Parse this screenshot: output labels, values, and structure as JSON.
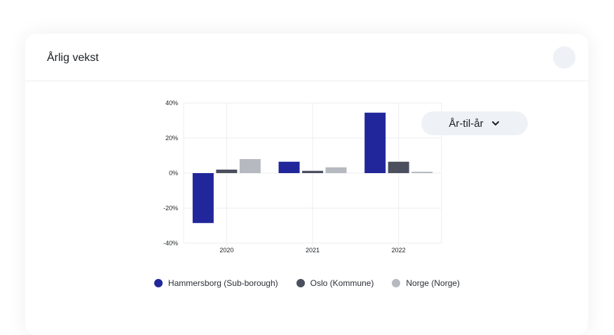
{
  "card": {
    "title": "Årlig vekst"
  },
  "dropdown": {
    "selected": "År-til-år",
    "icon": "chevron-down-icon"
  },
  "colors": {
    "hammersborg": "#21279a",
    "oslo": "#4b4f5e",
    "norge": "#b6b9bf",
    "grid": "#ebedf0"
  },
  "chart_data": {
    "type": "bar",
    "categories": [
      "2020",
      "2021",
      "2022"
    ],
    "ylim": [
      -40,
      40
    ],
    "yticks": [
      40,
      20,
      0,
      -20,
      -40
    ],
    "ytick_labels": [
      "40%",
      "20%",
      "0%",
      "-20%",
      "-40%"
    ],
    "grid": true,
    "legend_position": "bottom",
    "series": [
      {
        "name": "Hammersborg (Sub-borough)",
        "color": "#21279a",
        "values": [
          -28.5,
          6.5,
          34.5
        ]
      },
      {
        "name": "Oslo (Kommune)",
        "color": "#4b4f5e",
        "values": [
          2,
          1.3,
          6.5
        ]
      },
      {
        "name": "Norge (Norge)",
        "color": "#b6b9bf",
        "values": [
          8,
          3.3,
          0.8
        ]
      }
    ]
  }
}
